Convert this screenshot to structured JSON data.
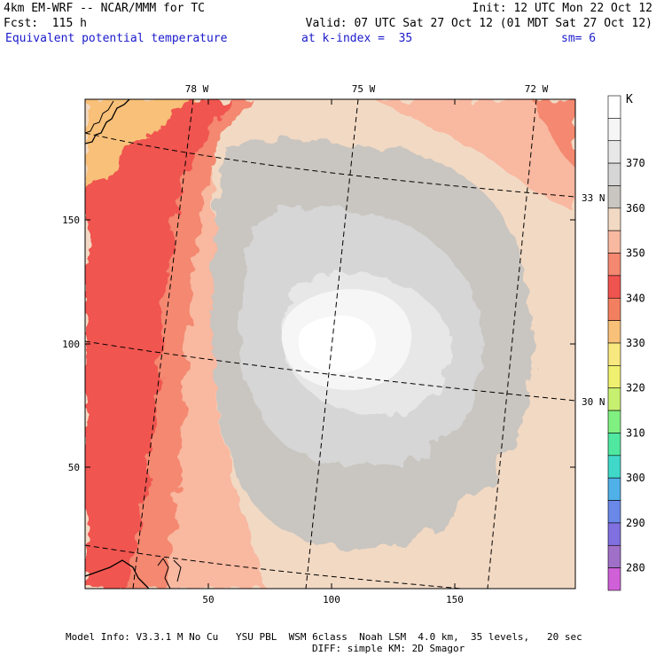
{
  "header": {
    "model_title": "4km EM-WRF -- NCAR/MMM for TC",
    "init": "Init: 12 UTC Mon 22 Oct 12",
    "forecast": "Fcst:  115 h",
    "valid": "Valid: 07 UTC Sat 27 Oct 12 (01 MDT Sat 27 Oct 12)",
    "field_name": "Equivalent potential temperature",
    "k_index": "at k-index =  35",
    "smoothing": "sm= 6"
  },
  "map": {
    "longitude_labels": [
      "78 W",
      "75 W",
      "72 W"
    ],
    "latitude_labels": [
      "33 N",
      "30 N"
    ],
    "x_axis_ticks": [
      "50",
      "100",
      "150"
    ],
    "y_axis_ticks": [
      "150",
      "100",
      "50"
    ]
  },
  "legend": {
    "unit": "K",
    "levels": [
      {
        "value": 390,
        "color": "#ffffff",
        "label": ""
      },
      {
        "value": 380,
        "color": "#f6f6f6",
        "label": ""
      },
      {
        "value": 370,
        "color": "#e7e7e7",
        "label": "370"
      },
      {
        "value": 365,
        "color": "#d6d6d6",
        "label": ""
      },
      {
        "value": 360,
        "color": "#c9c5c0",
        "label": "360"
      },
      {
        "value": 355,
        "color": "#f2d9c3",
        "label": ""
      },
      {
        "value": 350,
        "color": "#f9b8a0",
        "label": "350"
      },
      {
        "value": 345,
        "color": "#f48870",
        "label": ""
      },
      {
        "value": 340,
        "color": "#f05450",
        "label": "340"
      },
      {
        "value": 335,
        "color": "#f28060",
        "label": ""
      },
      {
        "value": 330,
        "color": "#f8c078",
        "label": "330"
      },
      {
        "value": 325,
        "color": "#f8e880",
        "label": ""
      },
      {
        "value": 320,
        "color": "#f0f070",
        "label": "320"
      },
      {
        "value": 315,
        "color": "#c8f070",
        "label": ""
      },
      {
        "value": 310,
        "color": "#80f080",
        "label": "310"
      },
      {
        "value": 305,
        "color": "#50e8a0",
        "label": ""
      },
      {
        "value": 300,
        "color": "#40d8c8",
        "label": "300"
      },
      {
        "value": 295,
        "color": "#50b0e8",
        "label": ""
      },
      {
        "value": 290,
        "color": "#6a88e8",
        "label": "290"
      },
      {
        "value": 285,
        "color": "#8070e0",
        "label": ""
      },
      {
        "value": 280,
        "color": "#a070c8",
        "label": "280"
      },
      {
        "value": 275,
        "color": "#d060d8",
        "label": ""
      }
    ]
  },
  "footer": {
    "model_info": "Model Info: V3.3.1 M No Cu   YSU PBL  WSM 6class  Noah LSM  4.0 km,  35 levels,   20 sec",
    "diffusion": "DIFF: simple KM: 2D Smagor"
  },
  "colors": {
    "title_blue": "#1a1acc",
    "land_outline": "#000000",
    "grid_line": "#000000"
  }
}
